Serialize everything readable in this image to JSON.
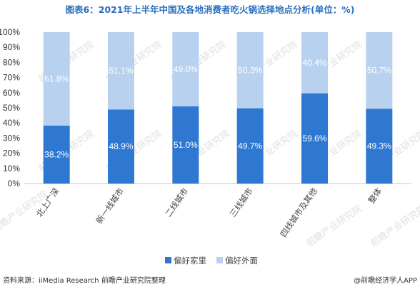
{
  "chart_data": {
    "type": "bar",
    "stacked": true,
    "title": "图表6：2021年上半年中国及各地消费者吃火锅选择地点分析(单位：%)",
    "categories": [
      "北上广深",
      "新一线城市",
      "二线城市",
      "三线城市",
      "四线城市及其他",
      "整体"
    ],
    "series": [
      {
        "name": "偏好家里",
        "values": [
          38.2,
          48.9,
          51.0,
          49.7,
          59.6,
          49.3
        ],
        "labels": [
          "38.2%",
          "48.9%",
          "51.0%",
          "49.7%",
          "59.6%",
          "49.3%"
        ]
      },
      {
        "name": "偏好外面",
        "values": [
          61.8,
          51.1,
          49.0,
          50.3,
          40.4,
          50.7
        ],
        "labels": [
          "61.8%",
          "51.1%",
          "49.0%",
          "50.3%",
          "40.4%",
          "50.7%"
        ]
      }
    ],
    "ylim": [
      0,
      100
    ],
    "yticks": [
      "0%",
      "10%",
      "20%",
      "30%",
      "40%",
      "50%",
      "60%",
      "70%",
      "80%",
      "90%",
      "100%"
    ],
    "legend_position": "bottom",
    "grid": false
  },
  "colors": {
    "home": "#2f78d2",
    "outside": "#b8d1ef",
    "title": "#2a6ebf",
    "axis": "#c8c8c8"
  },
  "watermark": "前瞻产业研究院",
  "footer": {
    "source": "资料来源：iiMedia Research 前瞻产业研究院整理",
    "credit": "@前瞻经济学人APP"
  }
}
